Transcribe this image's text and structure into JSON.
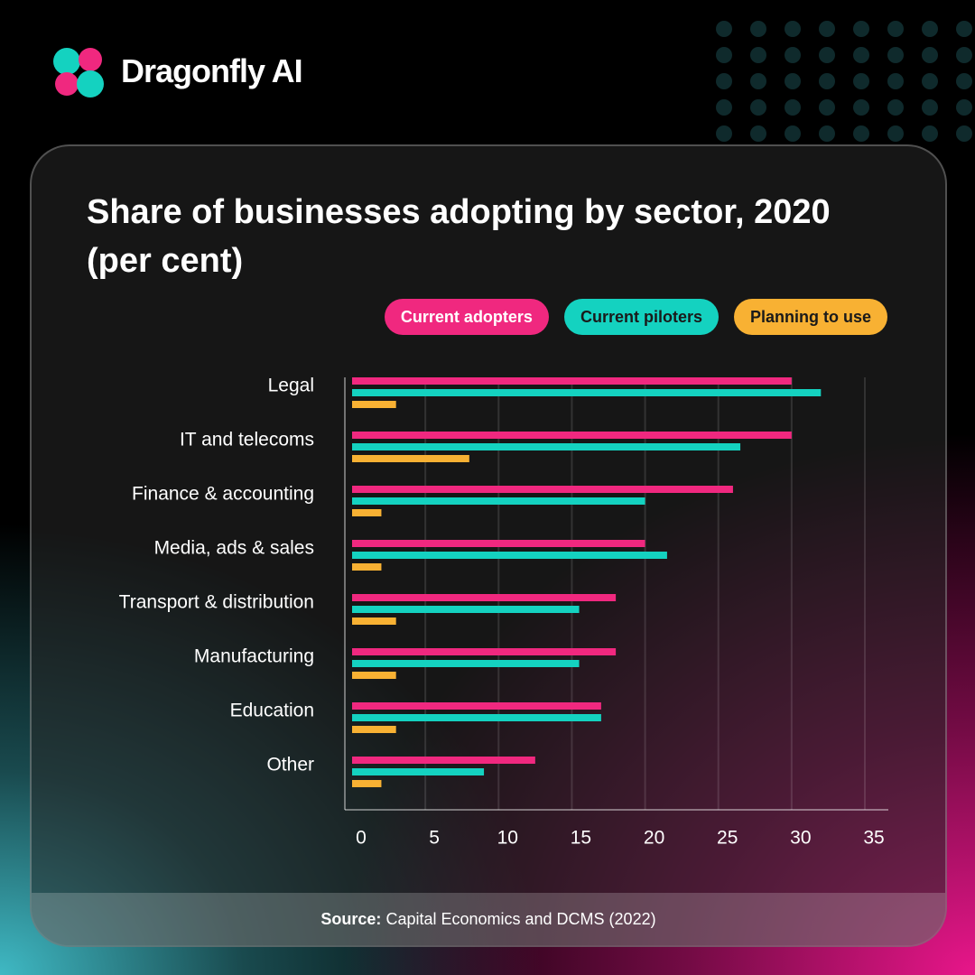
{
  "brand": "Dragonfly AI",
  "source_label": "Source:",
  "source": "Capital Economics and DCMS (2022)",
  "chart_data": {
    "type": "barh",
    "title": "Share of businesses adopting by sector, 2020 (per cent)",
    "categories": [
      "Legal",
      "IT and telecoms",
      "Finance & accounting",
      "Media, ads & sales",
      "Transport & distribution",
      "Manufacturing",
      "Education",
      "Other"
    ],
    "series": [
      {
        "name": "Current adopters",
        "color": "#f0287f",
        "values": [
          30,
          30,
          26,
          20,
          18,
          18,
          17,
          12.5
        ]
      },
      {
        "name": "Current piloters",
        "color": "#14d2c0",
        "values": [
          32,
          26.5,
          20,
          21.5,
          15.5,
          15.5,
          17,
          9
        ]
      },
      {
        "name": "Planning to use",
        "color": "#f8b133",
        "values": [
          3,
          8,
          2,
          2,
          3,
          3,
          3,
          2
        ]
      }
    ],
    "xlim": [
      0,
      35
    ],
    "xticks": [
      0,
      5,
      10,
      15,
      20,
      25,
      30,
      35
    ],
    "grid": true
  }
}
